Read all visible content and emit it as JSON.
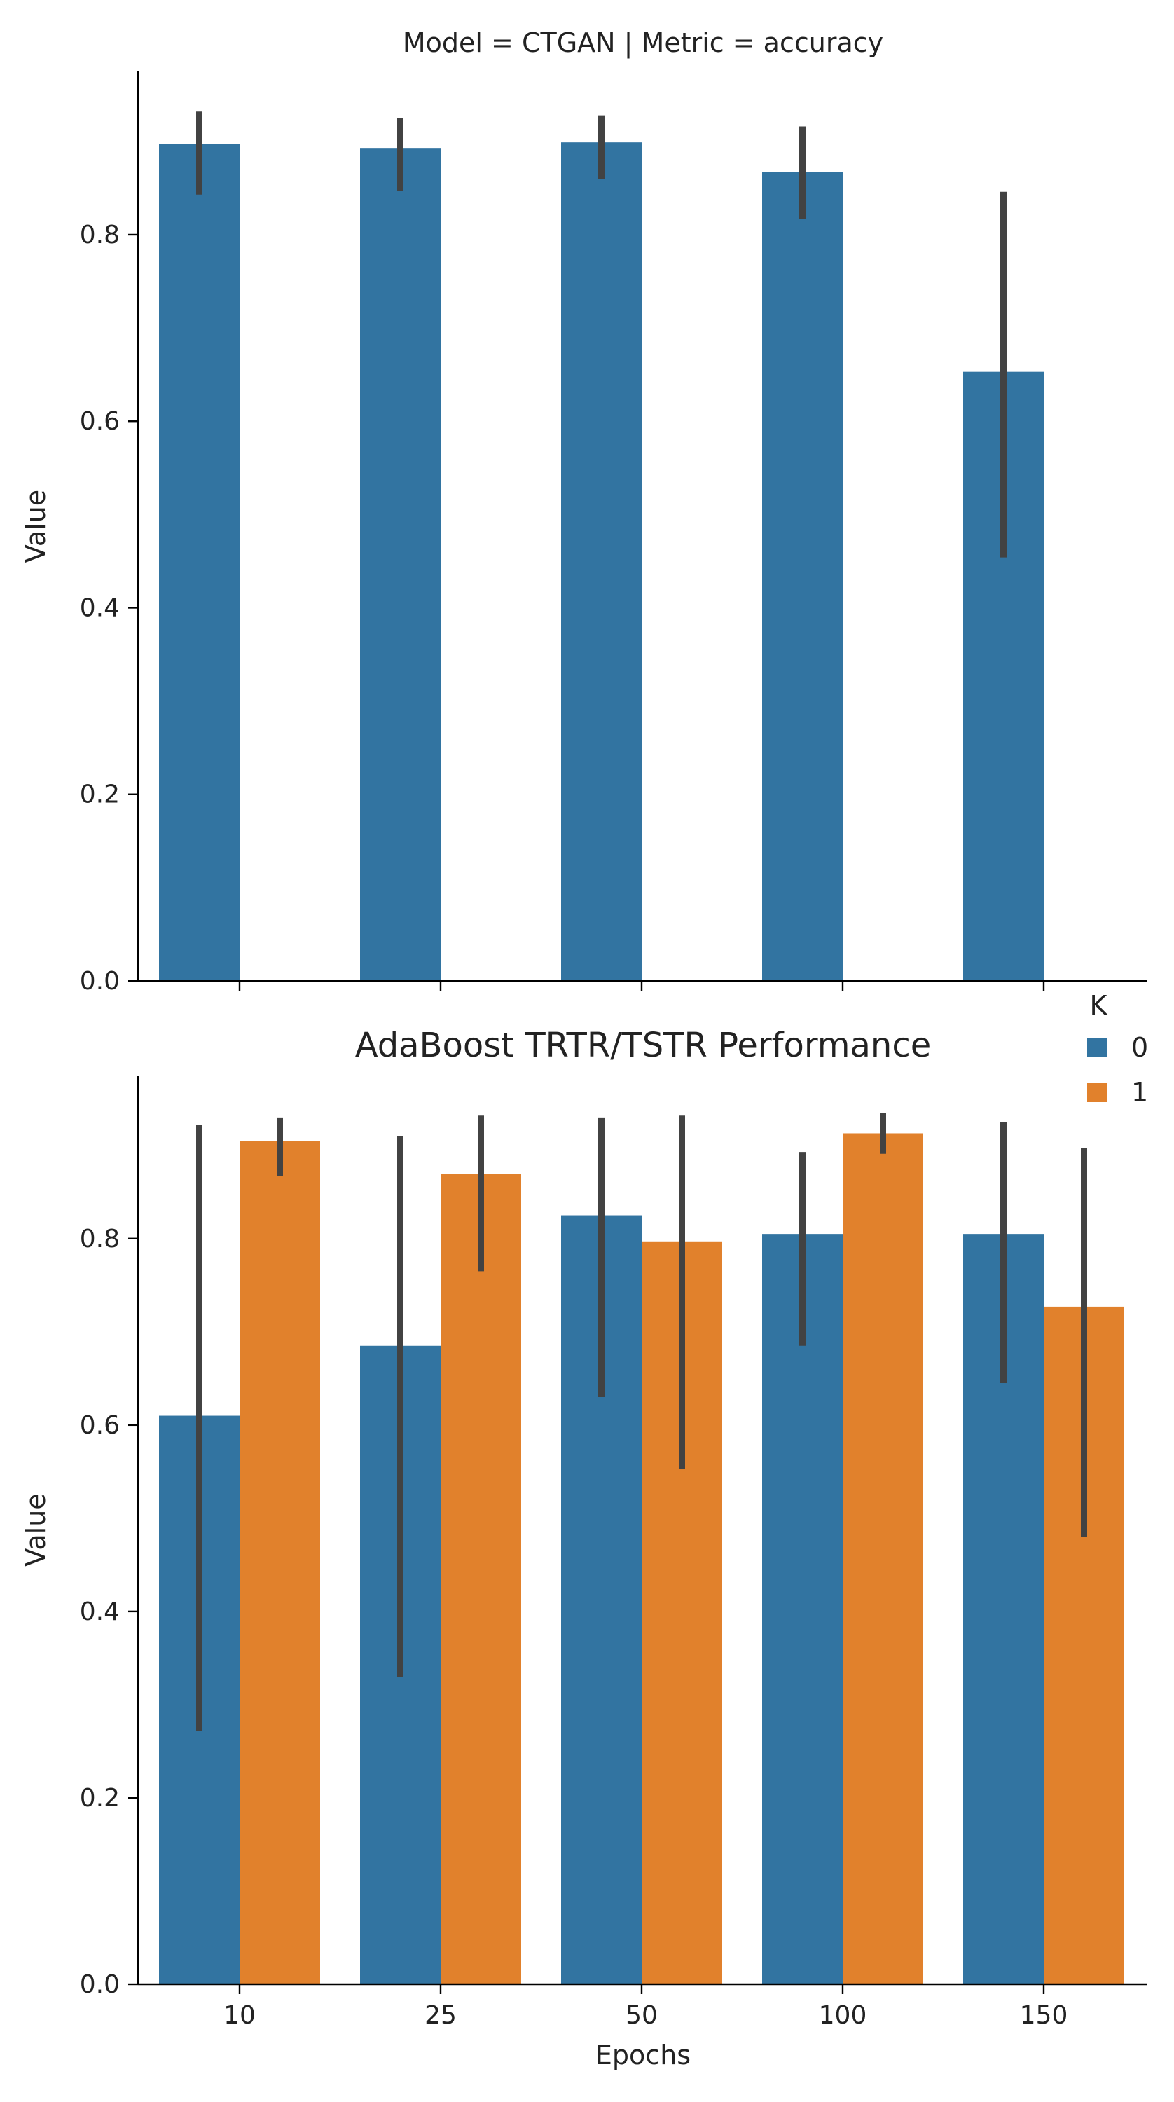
{
  "figure_title": "AdaBoost TRTR/TSTR Performance",
  "colors": {
    "K0": "#3274a1",
    "K1": "#e1812c",
    "errbar": "#424242"
  },
  "legend": {
    "title": "K",
    "entries": [
      "0",
      "1"
    ],
    "placement": "top-right"
  },
  "chart_data": [
    {
      "type": "bar",
      "title": "Model = CTGAN | Metric = accuracy",
      "xlabel": "",
      "ylabel": "Value",
      "categories": [
        "10",
        "25",
        "50",
        "100",
        "150"
      ],
      "yticks": [
        "0.0",
        "0.2",
        "0.4",
        "0.6",
        "0.8"
      ],
      "ylim": [
        0,
        0.975
      ],
      "grid": false,
      "show_xtick_labels": false,
      "series": [
        {
          "key": "K0",
          "values": [
            0.897,
            0.893,
            0.899,
            0.867,
            0.653
          ],
          "err_low": [
            0.843,
            0.847,
            0.86,
            0.817,
            0.454
          ],
          "err_high": [
            0.932,
            0.925,
            0.928,
            0.916,
            0.846
          ]
        }
      ]
    },
    {
      "type": "bar",
      "title": "",
      "xlabel": "Epochs",
      "ylabel": "Value",
      "categories": [
        "10",
        "25",
        "50",
        "100",
        "150"
      ],
      "yticks": [
        "0.0",
        "0.2",
        "0.4",
        "0.6",
        "0.8"
      ],
      "ylim": [
        0,
        0.975
      ],
      "grid": false,
      "show_xtick_labels": true,
      "series": [
        {
          "key": "K0",
          "name": "0",
          "values": [
            0.61,
            0.685,
            0.825,
            0.805,
            0.805
          ],
          "err_low": [
            0.272,
            0.33,
            0.63,
            0.685,
            0.645
          ],
          "err_high": [
            0.922,
            0.91,
            0.93,
            0.893,
            0.925
          ]
        },
        {
          "key": "K1",
          "name": "1",
          "values": [
            0.905,
            0.869,
            0.797,
            0.913,
            0.727
          ],
          "err_low": [
            0.867,
            0.765,
            0.553,
            0.891,
            0.48
          ],
          "err_high": [
            0.93,
            0.932,
            0.932,
            0.935,
            0.897
          ]
        }
      ]
    }
  ]
}
